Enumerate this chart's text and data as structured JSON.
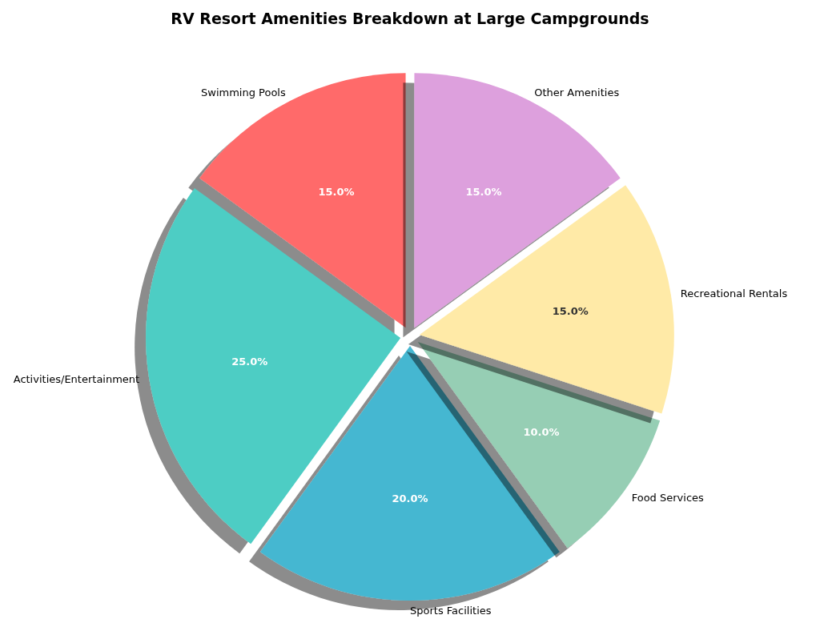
{
  "chart_data": {
    "type": "pie",
    "title": "RV Resort Amenities Breakdown at Large Campgrounds",
    "categories": [
      "Swimming Pools",
      "Activities/Entertainment",
      "Sports Facilities",
      "Food Services",
      "Recreational Rentals",
      "Other Amenities"
    ],
    "values": [
      15,
      25,
      20,
      10,
      15,
      15
    ],
    "colors": [
      "#ff6b6b",
      "#4ecdc4",
      "#45b7d1",
      "#96ceb4",
      "#ffeaa7",
      "#dda0dd"
    ],
    "value_labels": [
      "15.0%",
      "25.0%",
      "20.0%",
      "10.0%",
      "15.0%",
      "15.0%"
    ],
    "legend": false
  }
}
